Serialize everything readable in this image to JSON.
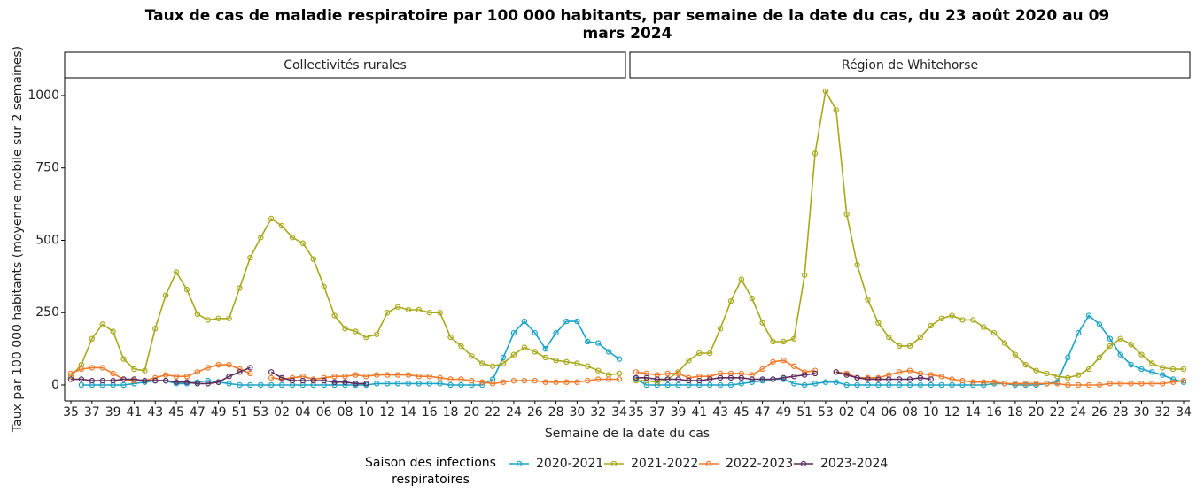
{
  "title": "Taux de cas de maladie respiratoire par 100 000 habitants, par semaine de la date du cas, du 23 août 2020 au 09 mars 2024",
  "x_label": "Semaine de la date du cas",
  "y_label": "Taux par 100 000 habitants (moyenne mobile sur 2 semaines)",
  "legend_title": "Saison des infections respiratoires",
  "chart_data": [
    {
      "type": "line",
      "title": "Collectivités rurales",
      "categories": [
        "35",
        null,
        "37",
        null,
        "39",
        null,
        "41",
        null,
        "43",
        null,
        "45",
        null,
        "47",
        null,
        "49",
        null,
        "51",
        null,
        "53",
        null,
        "02",
        null,
        "04",
        null,
        "06",
        null,
        "08",
        null,
        "10",
        null,
        "12",
        null,
        "14",
        null,
        "16",
        null,
        "18",
        null,
        "20",
        null,
        "22",
        null,
        "24",
        null,
        "26",
        null,
        "28",
        null,
        "30",
        null,
        "32",
        null,
        "34"
      ],
      "ylim": [
        -55,
        1061
      ],
      "yticks": [
        0,
        250,
        500,
        750,
        1000
      ],
      "series": [
        {
          "name": "2020-2021",
          "color": "#1ba3c6",
          "values": [
            null,
            0,
            0,
            0,
            0,
            0,
            5,
            10,
            15,
            15,
            5,
            5,
            10,
            15,
            10,
            5,
            0,
            0,
            0,
            0,
            0,
            0,
            0,
            0,
            0,
            0,
            0,
            0,
            0,
            5,
            5,
            5,
            5,
            5,
            5,
            5,
            0,
            0,
            0,
            0,
            20,
            95,
            180,
            220,
            180,
            125,
            180,
            220,
            220,
            150,
            145,
            115,
            90
          ]
        },
        {
          "name": "2021-2022",
          "color": "#a8a81a",
          "values": [
            30,
            70,
            160,
            210,
            185,
            90,
            55,
            50,
            195,
            310,
            390,
            330,
            245,
            225,
            230,
            230,
            335,
            440,
            510,
            575,
            550,
            510,
            490,
            435,
            340,
            240,
            195,
            185,
            165,
            175,
            250,
            270,
            260,
            260,
            250,
            250,
            165,
            135,
            100,
            75,
            65,
            75,
            105,
            130,
            115,
            95,
            85,
            80,
            75,
            65,
            50,
            35,
            40
          ]
        },
        {
          "name": "2022-2023",
          "color": "#f07a2a",
          "values": [
            40,
            55,
            60,
            60,
            40,
            20,
            15,
            15,
            25,
            35,
            30,
            30,
            45,
            60,
            70,
            70,
            55,
            40,
            null,
            25,
            20,
            25,
            30,
            20,
            25,
            30,
            30,
            35,
            30,
            35,
            35,
            35,
            35,
            30,
            30,
            25,
            20,
            20,
            15,
            10,
            5,
            10,
            15,
            15,
            15,
            10,
            10,
            10,
            10,
            15,
            20,
            20,
            20
          ]
        },
        {
          "name": "2023-2024",
          "color": "#5c2c5e",
          "values": [
            20,
            20,
            15,
            15,
            15,
            20,
            20,
            15,
            15,
            15,
            10,
            10,
            5,
            5,
            10,
            30,
            45,
            60,
            null,
            45,
            25,
            15,
            15,
            15,
            15,
            10,
            10,
            5,
            5,
            null,
            null,
            null,
            null,
            null,
            null,
            null,
            null,
            null,
            null,
            null,
            null,
            null,
            null,
            null,
            null,
            null,
            null,
            null,
            null,
            null,
            null,
            null,
            null
          ]
        }
      ]
    },
    {
      "type": "line",
      "title": "Région de Whitehorse",
      "categories": [
        "35",
        null,
        "37",
        null,
        "39",
        null,
        "41",
        null,
        "43",
        null,
        "45",
        null,
        "47",
        null,
        "49",
        null,
        "51",
        null,
        "53",
        null,
        "02",
        null,
        "04",
        null,
        "06",
        null,
        "08",
        null,
        "10",
        null,
        "12",
        null,
        "14",
        null,
        "16",
        null,
        "18",
        null,
        "20",
        null,
        "22",
        null,
        "24",
        null,
        "26",
        null,
        "28",
        null,
        "30",
        null,
        "32",
        null,
        "34"
      ],
      "ylim": [
        -55,
        1061
      ],
      "yticks": [
        0,
        250,
        500,
        750,
        1000
      ],
      "series": [
        {
          "name": "2020-2021",
          "color": "#1ba3c6",
          "values": [
            20,
            0,
            0,
            0,
            0,
            0,
            0,
            0,
            0,
            0,
            5,
            10,
            15,
            20,
            20,
            5,
            0,
            5,
            10,
            10,
            0,
            0,
            0,
            0,
            0,
            0,
            0,
            0,
            0,
            0,
            0,
            0,
            0,
            0,
            5,
            5,
            0,
            0,
            0,
            5,
            10,
            95,
            180,
            240,
            210,
            160,
            105,
            70,
            55,
            45,
            35,
            20,
            10
          ]
        },
        {
          "name": "2021-2022",
          "color": "#a8a81a",
          "values": [
            15,
            15,
            10,
            20,
            45,
            85,
            110,
            110,
            195,
            290,
            365,
            300,
            215,
            150,
            150,
            160,
            380,
            800,
            1015,
            950,
            590,
            415,
            295,
            215,
            165,
            135,
            135,
            165,
            205,
            230,
            240,
            225,
            225,
            200,
            180,
            145,
            105,
            70,
            50,
            40,
            30,
            25,
            35,
            55,
            95,
            135,
            160,
            140,
            105,
            75,
            60,
            55,
            55
          ]
        },
        {
          "name": "2022-2023",
          "color": "#f07a2a",
          "values": [
            45,
            40,
            35,
            40,
            40,
            25,
            30,
            30,
            40,
            40,
            40,
            35,
            55,
            80,
            85,
            65,
            45,
            50,
            null,
            45,
            40,
            25,
            25,
            25,
            35,
            45,
            50,
            40,
            35,
            30,
            20,
            15,
            10,
            10,
            10,
            5,
            5,
            5,
            5,
            5,
            5,
            0,
            0,
            0,
            0,
            5,
            5,
            5,
            5,
            5,
            5,
            10,
            15
          ]
        },
        {
          "name": "2023-2024",
          "color": "#5c2c5e",
          "values": [
            25,
            25,
            20,
            20,
            20,
            15,
            15,
            20,
            25,
            25,
            25,
            20,
            20,
            20,
            25,
            30,
            35,
            40,
            null,
            45,
            35,
            25,
            20,
            20,
            20,
            20,
            20,
            25,
            20,
            null,
            null,
            null,
            null,
            null,
            null,
            null,
            null,
            null,
            null,
            null,
            null,
            null,
            null,
            null,
            null,
            null,
            null,
            null,
            null,
            null,
            null,
            null,
            null
          ]
        }
      ]
    }
  ]
}
